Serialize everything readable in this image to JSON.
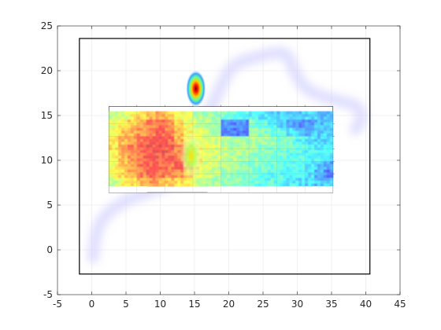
{
  "chart_data": {
    "type": "heatmap",
    "title": "",
    "xlabel": "",
    "ylabel": "",
    "xlim": [
      -5,
      45
    ],
    "ylim": [
      -5,
      25
    ],
    "xticks": [
      -5,
      0,
      5,
      10,
      15,
      20,
      25,
      30,
      35,
      40,
      45
    ],
    "yticks": [
      -5,
      0,
      5,
      10,
      15,
      20,
      25
    ],
    "grid": true,
    "colormap": "jet",
    "inset_image_extent": {
      "x": [
        2.5,
        35.2
      ],
      "y": [
        6.4,
        16.0
      ]
    },
    "black_frame": {
      "x": [
        -1.8,
        40.6
      ],
      "y": [
        -2.7,
        23.6
      ]
    },
    "hotspot": {
      "x": 15.2,
      "y": 18.0,
      "value": "max"
    },
    "secondary_hotspot": {
      "x": 14.5,
      "y": 10.5
    },
    "trail_path": [
      [
        0.2,
        -0.8
      ],
      [
        0.5,
        2.0
      ],
      [
        2.0,
        4.0
      ],
      [
        5.5,
        5.8
      ],
      [
        10.0,
        6.8
      ],
      [
        13.5,
        8.5
      ],
      [
        15.0,
        11.0
      ],
      [
        16.0,
        13.5
      ],
      [
        17.5,
        16.0
      ],
      [
        19.0,
        18.5
      ],
      [
        20.0,
        20.0
      ],
      [
        21.5,
        21.0
      ],
      [
        24.0,
        21.5
      ],
      [
        26.5,
        22.0
      ],
      [
        28.5,
        22.0
      ],
      [
        29.5,
        20.0
      ],
      [
        31.0,
        18.0
      ],
      [
        34.0,
        17.0
      ],
      [
        37.0,
        16.5
      ],
      [
        39.0,
        16.0
      ],
      [
        39.5,
        14.5
      ],
      [
        38.5,
        13.5
      ]
    ],
    "grid_values": [
      [
        0.55,
        0.58,
        0.62,
        0.68,
        0.72,
        0.75,
        0.7,
        0.62,
        0.58,
        0.52,
        0.5,
        0.48,
        0.45,
        0.42,
        0.4,
        0.38,
        0.35,
        0.33,
        0.3,
        0.28,
        0.3,
        0.32,
        0.3,
        0.28
      ],
      [
        0.6,
        0.66,
        0.7,
        0.75,
        0.8,
        0.82,
        0.78,
        0.68,
        0.6,
        0.55,
        0.52,
        0.5,
        0.25,
        0.2,
        0.22,
        0.45,
        0.42,
        0.38,
        0.3,
        0.25,
        0.22,
        0.25,
        0.28,
        0.3
      ],
      [
        0.62,
        0.7,
        0.74,
        0.78,
        0.82,
        0.85,
        0.8,
        0.72,
        0.62,
        0.58,
        0.55,
        0.52,
        0.22,
        0.18,
        0.2,
        0.48,
        0.45,
        0.42,
        0.4,
        0.35,
        0.3,
        0.28,
        0.3,
        0.32
      ],
      [
        0.65,
        0.72,
        0.76,
        0.82,
        0.86,
        0.88,
        0.84,
        0.74,
        0.65,
        0.6,
        0.58,
        0.55,
        0.52,
        0.5,
        0.5,
        0.52,
        0.5,
        0.48,
        0.45,
        0.42,
        0.38,
        0.35,
        0.32,
        0.3
      ],
      [
        0.66,
        0.74,
        0.8,
        0.85,
        0.88,
        0.9,
        0.86,
        0.78,
        0.68,
        0.62,
        0.6,
        0.58,
        0.55,
        0.52,
        0.5,
        0.5,
        0.48,
        0.46,
        0.44,
        0.42,
        0.4,
        0.38,
        0.36,
        0.35
      ],
      [
        0.64,
        0.72,
        0.78,
        0.84,
        0.88,
        0.86,
        0.84,
        0.8,
        0.7,
        0.64,
        0.6,
        0.56,
        0.54,
        0.52,
        0.5,
        0.48,
        0.46,
        0.44,
        0.42,
        0.4,
        0.4,
        0.38,
        0.36,
        0.35
      ],
      [
        0.62,
        0.7,
        0.76,
        0.82,
        0.86,
        0.84,
        0.82,
        0.9,
        0.74,
        0.64,
        0.58,
        0.54,
        0.52,
        0.5,
        0.48,
        0.46,
        0.44,
        0.42,
        0.42,
        0.4,
        0.38,
        0.36,
        0.3,
        0.25
      ],
      [
        0.6,
        0.68,
        0.74,
        0.8,
        0.84,
        0.82,
        0.8,
        0.78,
        0.7,
        0.6,
        0.56,
        0.52,
        0.5,
        0.48,
        0.46,
        0.44,
        0.42,
        0.4,
        0.4,
        0.38,
        0.36,
        0.34,
        0.28,
        0.2
      ],
      [
        0.56,
        0.62,
        0.68,
        0.72,
        0.76,
        0.74,
        0.72,
        0.68,
        0.62,
        0.56,
        0.52,
        0.5,
        0.48,
        0.46,
        0.44,
        0.42,
        0.4,
        0.4,
        0.38,
        0.36,
        0.34,
        0.32,
        0.3,
        0.3
      ]
    ]
  }
}
